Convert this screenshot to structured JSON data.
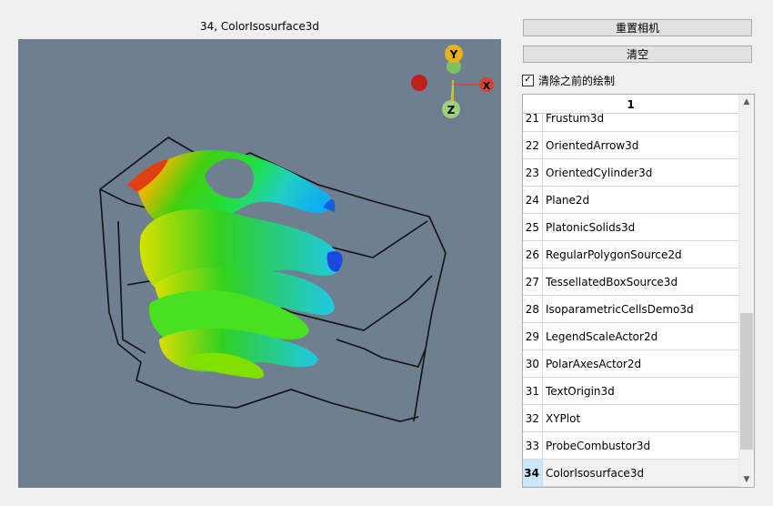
{
  "window": {
    "view_title": "34, ColorIsosurface3d"
  },
  "controls": {
    "reset_camera_label": "重置相机",
    "clear_label": "清空",
    "clear_previous_label": "清除之前的绘制",
    "clear_previous_checked": true
  },
  "axes": {
    "x_label": "X",
    "y_label": "Y",
    "z_label": "Z"
  },
  "list": {
    "header": "1",
    "items": [
      {
        "num": "21",
        "name": "Frustum3d"
      },
      {
        "num": "22",
        "name": "OrientedArrow3d"
      },
      {
        "num": "23",
        "name": "OrientedCylinder3d"
      },
      {
        "num": "24",
        "name": "Plane2d"
      },
      {
        "num": "25",
        "name": "PlatonicSolids3d"
      },
      {
        "num": "26",
        "name": "RegularPolygonSource2d"
      },
      {
        "num": "27",
        "name": "TessellatedBoxSource3d"
      },
      {
        "num": "28",
        "name": "IsoparametricCellsDemo3d"
      },
      {
        "num": "29",
        "name": "LegendScaleActor2d"
      },
      {
        "num": "30",
        "name": "PolarAxesActor2d"
      },
      {
        "num": "31",
        "name": "TextOrigin3d"
      },
      {
        "num": "32",
        "name": "XYPlot"
      },
      {
        "num": "33",
        "name": "ProbeCombustor3d"
      },
      {
        "num": "34",
        "name": "ColorIsosurface3d"
      }
    ],
    "selected_num": "34",
    "scroll_position": 0.9
  },
  "icons": {
    "scroll_up": "chevron-up-icon",
    "scroll_down": "chevron-down-icon",
    "check": "checkmark-icon"
  },
  "colors": {
    "viewport_bg": "#6f7f91",
    "axis_x": "#d9412f",
    "axis_y": "#e8b21a",
    "axis_z": "#9fd07a",
    "selection": "#cce8ff"
  }
}
